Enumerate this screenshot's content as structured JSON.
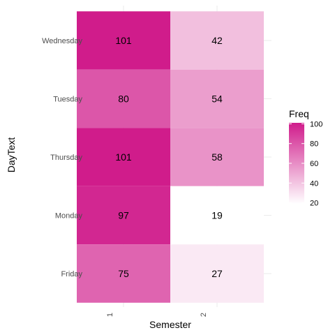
{
  "chart_data": {
    "type": "heatmap",
    "x_categories": [
      "1",
      "2"
    ],
    "y_categories": [
      "Friday",
      "Monday",
      "Thursday",
      "Tuesday",
      "Wednesday"
    ],
    "cells": [
      {
        "x": "1",
        "y": "Wednesday",
        "value": 101
      },
      {
        "x": "2",
        "y": "Wednesday",
        "value": 42
      },
      {
        "x": "1",
        "y": "Tuesday",
        "value": 80
      },
      {
        "x": "2",
        "y": "Tuesday",
        "value": 54
      },
      {
        "x": "1",
        "y": "Thursday",
        "value": 101
      },
      {
        "x": "2",
        "y": "Thursday",
        "value": 58
      },
      {
        "x": "1",
        "y": "Monday",
        "value": 97
      },
      {
        "x": "2",
        "y": "Monday",
        "value": 19
      },
      {
        "x": "1",
        "y": "Friday",
        "value": 75
      },
      {
        "x": "2",
        "y": "Friday",
        "value": 27
      }
    ],
    "xlabel": "Semester",
    "ylabel": "DayText",
    "legend": {
      "title": "Freq",
      "ticks": [
        20,
        40,
        60,
        80,
        100
      ],
      "range": [
        19,
        101
      ],
      "low_color": "#ffffff",
      "high_color": "#d01c8b",
      "placement": "right"
    },
    "grid": true
  }
}
